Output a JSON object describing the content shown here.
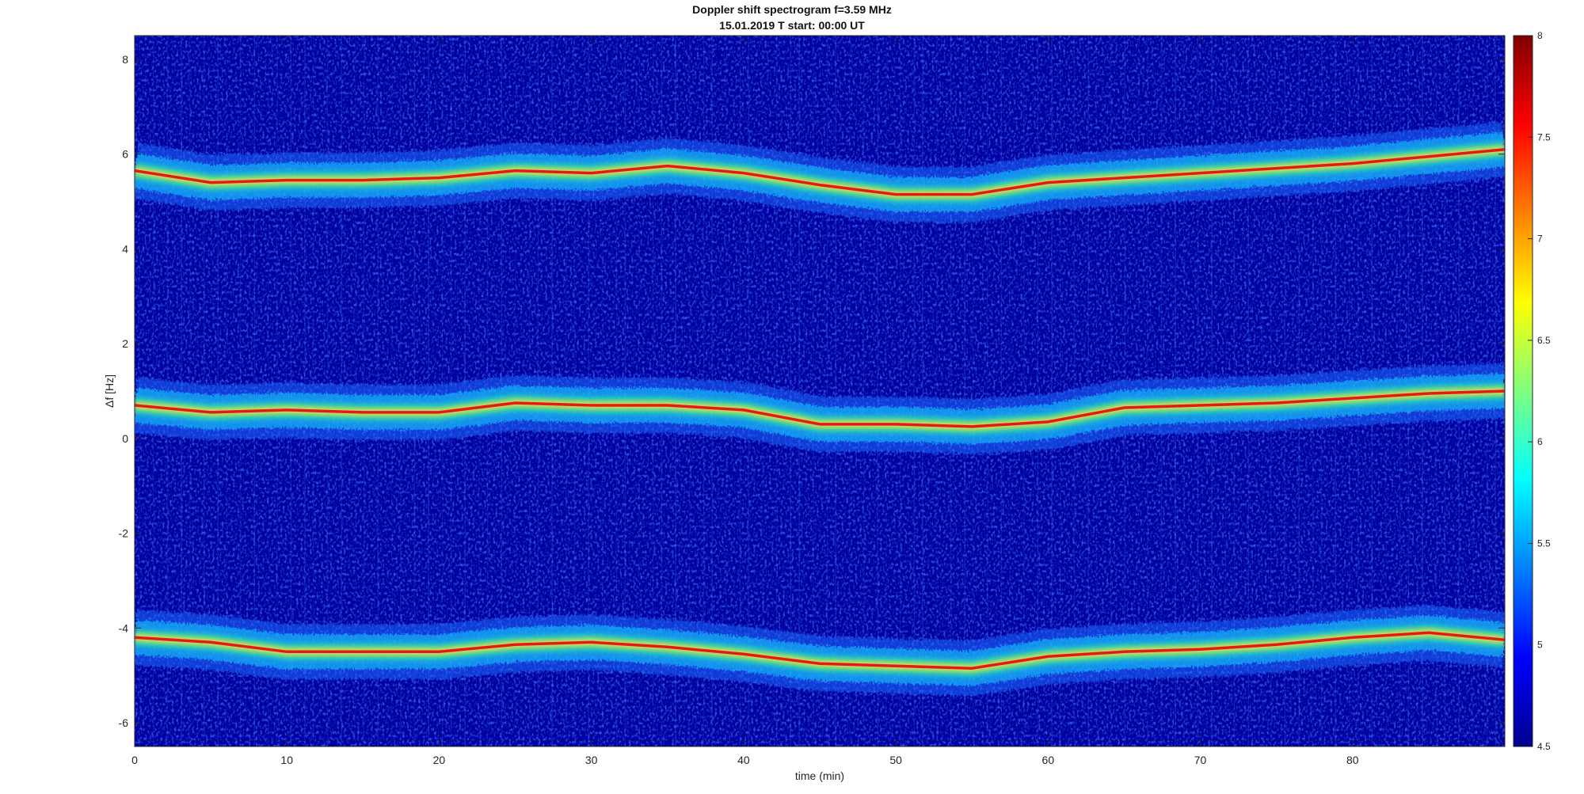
{
  "chart_data": {
    "type": "heatmap",
    "title": "Doppler shift spectrogram f=3.59 MHz",
    "subtitle": "15.01.2019   T start: 00:00 UT",
    "xlabel": "time (min)",
    "ylabel": "Δf [Hz]",
    "xlim": [
      0,
      90
    ],
    "ylim": [
      -6.5,
      8.5
    ],
    "x_ticks": [
      0,
      10,
      20,
      30,
      40,
      50,
      60,
      70,
      80
    ],
    "y_ticks": [
      8,
      6,
      4,
      2,
      0,
      -2,
      -4,
      -6
    ],
    "colorbar": {
      "colormap": "jet",
      "range": [
        4.5,
        8
      ],
      "ticks": [
        "8",
        "7.5",
        "7",
        "6.5",
        "6",
        "5.5",
        "5",
        "4.5"
      ]
    },
    "series": [
      {
        "x": [
          0,
          5,
          10,
          15,
          20,
          25,
          30,
          35,
          40,
          45,
          50,
          55,
          60,
          65,
          70,
          75,
          80,
          85,
          90
        ],
        "y": [
          5.65,
          5.4,
          5.45,
          5.45,
          5.5,
          5.65,
          5.6,
          5.75,
          5.6,
          5.35,
          5.15,
          5.15,
          5.4,
          5.5,
          5.6,
          5.7,
          5.8,
          5.95,
          6.1
        ]
      },
      {
        "x": [
          0,
          5,
          10,
          15,
          20,
          25,
          30,
          35,
          40,
          45,
          50,
          55,
          60,
          65,
          70,
          75,
          80,
          85,
          90
        ],
        "y": [
          0.7,
          0.55,
          0.6,
          0.55,
          0.55,
          0.75,
          0.7,
          0.7,
          0.6,
          0.3,
          0.3,
          0.25,
          0.35,
          0.65,
          0.7,
          0.75,
          0.85,
          0.95,
          1.0
        ]
      },
      {
        "x": [
          0,
          5,
          10,
          15,
          20,
          25,
          30,
          35,
          40,
          45,
          50,
          55,
          60,
          65,
          70,
          75,
          80,
          85,
          90
        ],
        "y": [
          -4.2,
          -4.3,
          -4.5,
          -4.5,
          -4.5,
          -4.35,
          -4.3,
          -4.4,
          -4.55,
          -4.75,
          -4.8,
          -4.85,
          -4.6,
          -4.5,
          -4.45,
          -4.35,
          -4.2,
          -4.1,
          -4.25
        ]
      }
    ]
  }
}
